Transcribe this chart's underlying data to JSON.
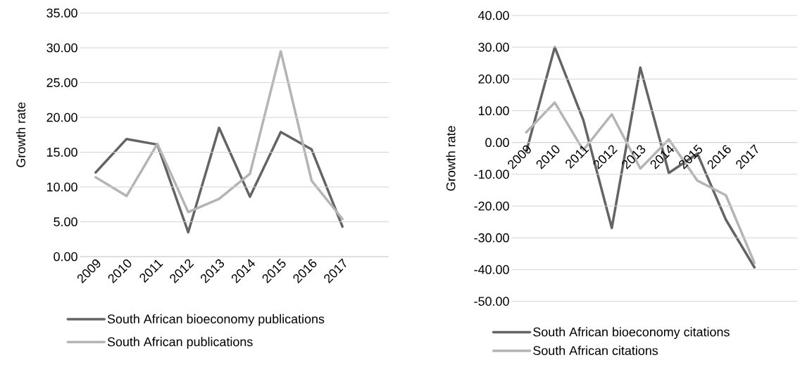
{
  "chart_data": [
    {
      "type": "line",
      "ylabel": "Growth rate",
      "categories": [
        "2009",
        "2010",
        "2011",
        "2012",
        "2013",
        "2014",
        "2015",
        "2016",
        "2017"
      ],
      "series": [
        {
          "name": "South African bioeconomy publications",
          "color": "#646464",
          "values": [
            12.1,
            16.9,
            16.1,
            3.5,
            18.5,
            8.6,
            17.9,
            15.4,
            4.3
          ]
        },
        {
          "name": "South African publications",
          "color": "#b4b4b4",
          "values": [
            11.4,
            8.7,
            16.2,
            6.4,
            8.3,
            11.9,
            29.5,
            10.9,
            5.4
          ]
        }
      ],
      "ylim": [
        0,
        35
      ],
      "yticks": [
        {
          "value": 0,
          "label": "0.00"
        },
        {
          "value": 5,
          "label": "5.00"
        },
        {
          "value": 10,
          "label": "10.00"
        },
        {
          "value": 15,
          "label": "15.00"
        },
        {
          "value": 20,
          "label": "20.00"
        },
        {
          "value": 25,
          "label": "25.00"
        },
        {
          "value": 30,
          "label": "30.00"
        },
        {
          "value": 35,
          "label": "35.00"
        }
      ],
      "grid": "y",
      "legend": "bottom"
    },
    {
      "type": "line",
      "ylabel": "Growth rate",
      "categories": [
        "2009",
        "2010",
        "2011",
        "2012",
        "2013",
        "2014",
        "2015",
        "2016",
        "2017"
      ],
      "series": [
        {
          "name": "South African bioeconomy citations",
          "color": "#646464",
          "values": [
            -2.9,
            30.0,
            7.1,
            -26.9,
            23.6,
            -9.6,
            -3.5,
            -24.3,
            -39.3
          ]
        },
        {
          "name": "South African citations",
          "color": "#b4b4b4",
          "values": [
            3.2,
            12.6,
            -2.4,
            8.9,
            -8.2,
            1.0,
            -12.0,
            -16.6,
            -37.9
          ]
        }
      ],
      "ylim": [
        -50,
        40
      ],
      "yticks": [
        {
          "value": -50,
          "label": "-50.00"
        },
        {
          "value": -40,
          "label": "-40.00"
        },
        {
          "value": -30,
          "label": "-30.00"
        },
        {
          "value": -20,
          "label": "-20.00"
        },
        {
          "value": -10,
          "label": "-10.00"
        },
        {
          "value": 0,
          "label": "0.00"
        },
        {
          "value": 10,
          "label": "10.00"
        },
        {
          "value": 20,
          "label": "20.00"
        },
        {
          "value": 30,
          "label": "30.00"
        },
        {
          "value": 40,
          "label": "40.00"
        }
      ],
      "grid": "y",
      "legend": "bottom"
    }
  ]
}
